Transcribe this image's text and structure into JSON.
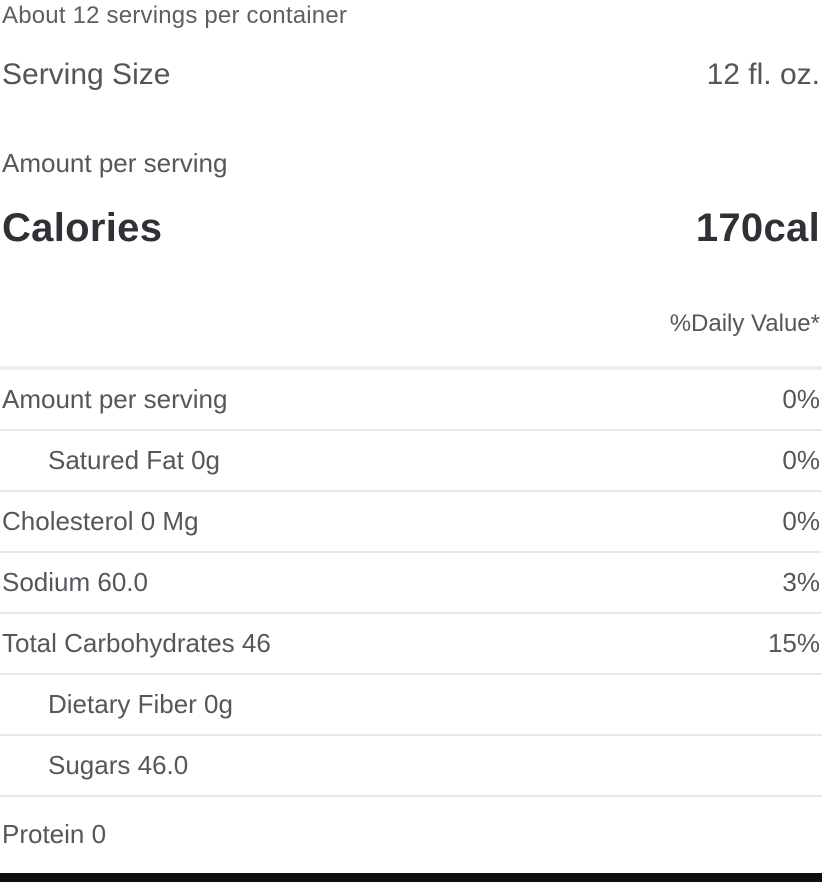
{
  "header": {
    "servings_note": "About 12 servings per container",
    "serving_size_label": "Serving Size",
    "serving_size_value": "12 fl. oz.",
    "amount_per_serving_label": "Amount per serving",
    "calories_label": "Calories",
    "calories_value": "170cal",
    "daily_value_note": "%Daily Value*"
  },
  "table": {
    "rows": [
      {
        "label": "Amount per serving",
        "value": "0%",
        "indent": false,
        "last": false
      },
      {
        "label": "Satured Fat 0g",
        "value": "0%",
        "indent": true,
        "last": false
      },
      {
        "label": "Cholesterol 0 Mg",
        "value": "0%",
        "indent": false,
        "last": false
      },
      {
        "label": "Sodium 60.0",
        "value": "3%",
        "indent": false,
        "last": false
      },
      {
        "label": "Total Carbohydrates 46",
        "value": "15%",
        "indent": false,
        "last": false
      },
      {
        "label": "Dietary Fiber 0g",
        "value": "",
        "indent": true,
        "last": false
      },
      {
        "label": "Sugars 46.0",
        "value": "",
        "indent": true,
        "last": false
      },
      {
        "label": "Protein 0",
        "value": "",
        "indent": false,
        "last": true
      }
    ]
  },
  "colors": {
    "background": "#ffffff",
    "text_regular": "#55575d",
    "text_bold": "#2f3137",
    "divider": "#e8e8e8",
    "bottom_rule": "#0f1013"
  }
}
